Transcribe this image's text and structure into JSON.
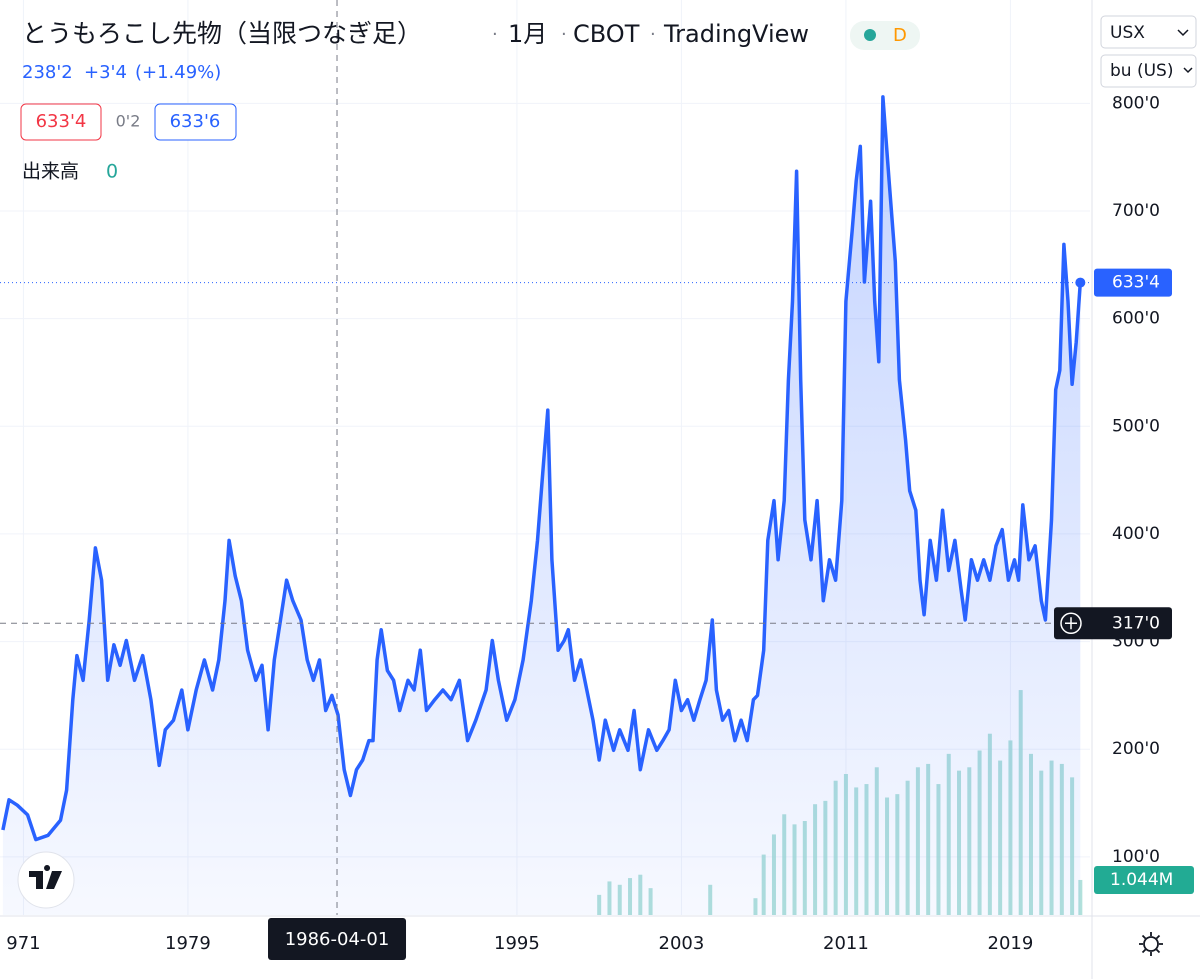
{
  "header": {
    "title": "とうもろこし先物（当限つなぎ足）",
    "interval": "1月",
    "exchange": "CBOT",
    "source": "TradingView",
    "badge": "D",
    "change_price": "238'2",
    "change": "+3'4",
    "change_pct": "(+1.49%)",
    "bid": "633'4",
    "spread": "0'2",
    "ask": "633'6",
    "volume_label": "出来高",
    "volume_value": "0"
  },
  "controls": {
    "currency": "USX",
    "unit": "bu (US)"
  },
  "chart_data": {
    "type": "area",
    "color": "#2962ff",
    "grid": true,
    "x": [
      1970.0,
      1970.3,
      1970.7,
      1971.2,
      1971.6,
      1972.2,
      1972.8,
      1973.1,
      1973.4,
      1973.6,
      1973.9,
      1974.2,
      1974.5,
      1974.8,
      1975.1,
      1975.4,
      1975.7,
      1976.0,
      1976.4,
      1976.8,
      1977.2,
      1977.6,
      1977.9,
      1978.3,
      1978.7,
      1979.0,
      1979.4,
      1979.8,
      1980.2,
      1980.5,
      1980.8,
      1981.0,
      1981.3,
      1981.6,
      1981.9,
      1982.3,
      1982.6,
      1982.9,
      1983.2,
      1983.5,
      1983.8,
      1984.1,
      1984.5,
      1984.8,
      1985.1,
      1985.4,
      1985.7,
      1986.0,
      1986.3,
      1986.6,
      1986.9,
      1987.2,
      1987.5,
      1987.8,
      1988.0,
      1988.2,
      1988.4,
      1988.7,
      1989.0,
      1989.3,
      1989.7,
      1990.0,
      1990.3,
      1990.6,
      1991.0,
      1991.4,
      1991.8,
      1992.2,
      1992.6,
      1993.0,
      1993.5,
      1993.8,
      1994.1,
      1994.5,
      1994.9,
      1995.3,
      1995.7,
      1996.0,
      1996.3,
      1996.5,
      1996.7,
      1997.0,
      1997.3,
      1997.5,
      1997.8,
      1998.1,
      1998.4,
      1998.7,
      1999.0,
      1999.3,
      1999.7,
      2000.0,
      2000.4,
      2000.7,
      2001.0,
      2001.4,
      2001.8,
      2002.1,
      2002.4,
      2002.7,
      2003.0,
      2003.3,
      2003.6,
      2003.9,
      2004.2,
      2004.5,
      2004.7,
      2005.0,
      2005.3,
      2005.6,
      2005.9,
      2006.2,
      2006.5,
      2006.7,
      2007.0,
      2007.2,
      2007.5,
      2007.7,
      2008.0,
      2008.2,
      2008.4,
      2008.6,
      2008.8,
      2009.0,
      2009.3,
      2009.6,
      2009.9,
      2010.2,
      2010.5,
      2010.8,
      2011.0,
      2011.3,
      2011.5,
      2011.7,
      2011.9,
      2012.2,
      2012.4,
      2012.6,
      2012.8,
      2013.1,
      2013.4,
      2013.6,
      2013.9,
      2014.1,
      2014.4,
      2014.6,
      2014.8,
      2015.1,
      2015.4,
      2015.7,
      2016.0,
      2016.3,
      2016.6,
      2016.8,
      2017.1,
      2017.4,
      2017.7,
      2018.0,
      2018.3,
      2018.6,
      2018.9,
      2019.2,
      2019.4,
      2019.6,
      2019.9,
      2020.2,
      2020.5,
      2020.7,
      2021.0,
      2021.2,
      2021.4,
      2021.6,
      2021.8,
      2022.0,
      2022.2,
      2022.4
    ],
    "values": [
      125,
      153,
      148,
      139,
      116,
      120,
      134,
      162,
      246,
      287,
      264,
      320,
      387,
      357,
      264,
      297,
      278,
      301,
      264,
      287,
      246,
      185,
      218,
      227,
      255,
      218,
      255,
      283,
      255,
      283,
      338,
      394,
      361,
      338,
      292,
      264,
      278,
      218,
      283,
      320,
      357,
      338,
      320,
      283,
      264,
      283,
      236,
      250,
      232,
      181,
      157,
      181,
      190,
      208,
      208,
      283,
      311,
      273,
      264,
      236,
      264,
      255,
      292,
      236,
      246,
      255,
      246,
      264,
      208,
      227,
      255,
      301,
      264,
      227,
      246,
      283,
      338,
      394,
      468,
      515,
      376,
      292,
      301,
      311,
      264,
      283,
      255,
      227,
      190,
      227,
      199,
      218,
      199,
      236,
      181,
      218,
      199,
      208,
      218,
      264,
      236,
      246,
      227,
      246,
      264,
      320,
      255,
      227,
      236,
      208,
      227,
      208,
      246,
      250,
      292,
      394,
      431,
      376,
      431,
      543,
      616,
      737,
      543,
      413,
      376,
      431,
      338,
      376,
      357,
      431,
      616,
      681,
      728,
      760,
      634,
      709,
      616,
      560,
      806,
      728,
      653,
      543,
      487,
      440,
      422,
      357,
      325,
      394,
      357,
      422,
      366,
      394,
      348,
      320,
      376,
      357,
      376,
      357,
      389,
      404,
      357,
      376,
      357,
      427,
      376,
      389,
      338,
      320,
      413,
      534,
      552,
      669,
      616,
      539,
      578,
      633.5
    ],
    "last_label": "633'4",
    "xlim": [
      1969.86,
      2022.87
    ],
    "xticks": [
      {
        "value": 1971,
        "label": "971"
      },
      1979,
      1995,
      2003,
      2011,
      2019
    ],
    "ylim": [
      46,
      896
    ],
    "yticks": [
      {
        "value": 100,
        "label": "100'0"
      },
      {
        "value": 200,
        "label": "200'0"
      },
      {
        "value": 300,
        "label": "300'0"
      },
      {
        "value": 400,
        "label": "400'0"
      },
      {
        "value": 500,
        "label": "500'0"
      },
      {
        "value": 600,
        "label": "600'0"
      },
      {
        "value": 700,
        "label": "700'0"
      },
      {
        "value": 800,
        "label": "800'0"
      }
    ],
    "volume": {
      "color": "#9fd9d2",
      "vlim": [
        0,
        7
      ],
      "x": [
        1999.0,
        1999.5,
        2000.0,
        2000.5,
        2001.0,
        2001.5,
        2004.4,
        2006.6,
        2007.0,
        2007.5,
        2008.0,
        2008.5,
        2009.0,
        2009.5,
        2010.0,
        2010.5,
        2011.0,
        2011.5,
        2012.0,
        2012.5,
        2013.0,
        2013.5,
        2014.0,
        2014.5,
        2015.0,
        2015.5,
        2016.0,
        2016.5,
        2017.0,
        2017.5,
        2018.0,
        2018.5,
        2019.0,
        2019.5,
        2020.0,
        2020.5,
        2021.0,
        2021.5,
        2022.0,
        2022.4
      ],
      "values": [
        0.6,
        1.0,
        0.9,
        1.1,
        1.2,
        0.8,
        0.9,
        0.5,
        1.8,
        2.4,
        3.0,
        2.7,
        2.8,
        3.3,
        3.4,
        4.0,
        4.2,
        3.8,
        3.9,
        4.4,
        3.5,
        3.6,
        4.0,
        4.4,
        4.5,
        3.9,
        4.8,
        4.3,
        4.4,
        4.9,
        5.4,
        4.6,
        5.2,
        6.7,
        4.8,
        4.3,
        4.6,
        4.5,
        4.1,
        1.044
      ],
      "last_label": "1.044M"
    },
    "crosshair": {
      "x": 1986.25,
      "x_label": "1986-04-01",
      "price": 317,
      "price_label": "317'0"
    }
  }
}
